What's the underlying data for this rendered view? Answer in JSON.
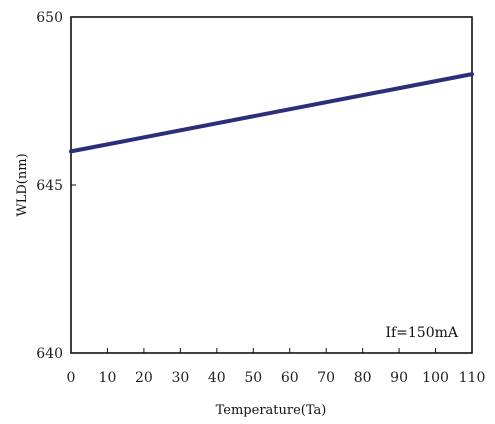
{
  "chart_data": {
    "type": "line",
    "title": "",
    "xlabel": "Temperature(Ta)",
    "ylabel": "WLD(nm)",
    "xlim": [
      0,
      110
    ],
    "ylim": [
      640,
      650
    ],
    "x_ticks": [
      "0",
      "10",
      "20",
      "30",
      "40",
      "50",
      "60",
      "70",
      "80",
      "90",
      "100",
      "110"
    ],
    "y_ticks": [
      "650",
      "645",
      "640"
    ],
    "grid": false,
    "annotation": "If=150mA",
    "series": [
      {
        "color": "#2b2f7a",
        "x": [
          0,
          110
        ],
        "y": [
          646.0,
          648.3
        ]
      }
    ]
  }
}
